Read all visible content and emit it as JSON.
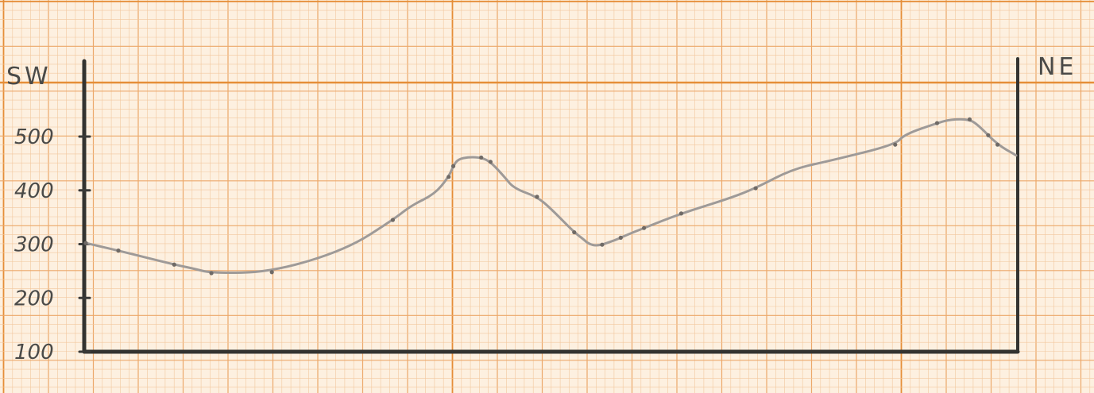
{
  "chart_data": {
    "type": "line",
    "title": "",
    "xlabel": "",
    "ylabel": "",
    "direction_labels": {
      "left": "SW",
      "right": "NE"
    },
    "yticks": [
      "100",
      "200",
      "300",
      "400",
      "500"
    ],
    "ylim": [
      100,
      600
    ],
    "xlim": [
      0,
      1
    ],
    "series": [
      {
        "x": [
          0.0,
          0.035,
          0.095,
          0.115,
          0.135,
          0.2,
          0.28,
          0.33,
          0.35,
          0.375,
          0.39,
          0.395,
          0.4,
          0.412,
          0.425,
          0.435,
          0.45,
          0.46,
          0.485,
          0.5,
          0.525,
          0.535,
          0.54,
          0.55,
          0.57,
          0.58,
          0.6,
          0.64,
          0.69,
          0.72,
          0.76,
          0.8,
          0.87,
          0.88,
          0.915,
          0.93,
          0.95,
          0.96,
          0.98,
          1.0
        ],
        "y": [
          302,
          288,
          262,
          255,
          246,
          248,
          290,
          345,
          372,
          393,
          425,
          445,
          458,
          462,
          461,
          453,
          425,
          404,
          388,
          366,
          322,
          309,
          301,
          296,
          308,
          316,
          330,
          357,
          384,
          404,
          440,
          455,
          485,
          504,
          525,
          532,
          532,
          520,
          485,
          465
        ],
        "markers": [
          0.0,
          0.035,
          0.095,
          0.135,
          0.2,
          0.33,
          0.39,
          0.395,
          0.425,
          0.435,
          0.485,
          0.525,
          0.555,
          0.575,
          0.6,
          0.64,
          0.72,
          0.87,
          0.915,
          0.95,
          0.97,
          0.98
        ]
      }
    ],
    "grid": true,
    "colors": {
      "paper": "#fdf0e0",
      "grid_fine": "#f2c79e",
      "grid_medium": "#eca86a",
      "grid_major": "#e58e38",
      "ink": "#3a3a38",
      "profile": "#9e9a98"
    }
  }
}
